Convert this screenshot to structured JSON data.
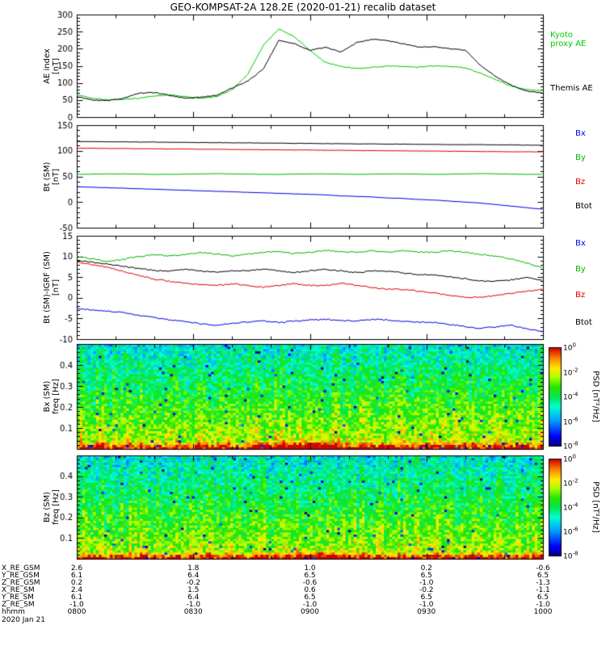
{
  "title": "GEO-KOMPSAT-2A 128.2E (2020-01-21) recalib dataset",
  "date_label": "2020 Jan 21",
  "colors": {
    "kyoto": "#00c800",
    "themis": "#000000",
    "bx": "#0000ee",
    "by": "#00b400",
    "bz": "#dd0000",
    "btot": "#000000"
  },
  "time_axis": {
    "xlim_minutes": [
      0,
      120
    ],
    "major_tick_minutes": [
      0,
      30,
      60,
      90,
      120
    ],
    "minor_step_minutes": 10,
    "major_tick_labels": [
      "0800",
      "0830",
      "0900",
      "0930",
      "1000"
    ]
  },
  "chart_data": [
    {
      "type": "line",
      "name": "ae-index",
      "ylabel_lines": [
        "AE index",
        "[nT]"
      ],
      "ylim": [
        0,
        300
      ],
      "yticks": [
        0,
        50,
        100,
        150,
        200,
        250,
        300
      ],
      "yminor": 10,
      "t_step_minutes": 4,
      "series": [
        {
          "name": "kyoto-proxy-ae",
          "legend_lines": [
            "Kyoto",
            "proxy AE"
          ],
          "color_key": "kyoto",
          "values": [
            65,
            55,
            50,
            52,
            55,
            62,
            65,
            60,
            55,
            60,
            80,
            125,
            210,
            258,
            235,
            195,
            160,
            148,
            142,
            145,
            150,
            148,
            146,
            150,
            148,
            144,
            128,
            108,
            90,
            80,
            78
          ]
        },
        {
          "name": "themis-ae",
          "legend_lines": [
            "Themis AE"
          ],
          "color_key": "themis",
          "values": [
            60,
            50,
            48,
            55,
            70,
            72,
            63,
            55,
            58,
            64,
            85,
            105,
            140,
            225,
            215,
            195,
            205,
            190,
            218,
            228,
            224,
            214,
            205,
            206,
            200,
            196,
            150,
            118,
            92,
            76,
            70
          ]
        }
      ]
    },
    {
      "type": "line",
      "name": "b-sm",
      "ylabel_lines": [
        "Bt (SM)",
        "[nT]"
      ],
      "ylim": [
        -50,
        150
      ],
      "yticks": [
        -50,
        0,
        50,
        100,
        150
      ],
      "yminor": 10,
      "t_step_minutes": 4,
      "series": [
        {
          "name": "bx",
          "legend_lines": [
            "Bx"
          ],
          "color_key": "bx",
          "values": [
            30,
            29,
            28,
            27,
            26,
            25,
            24,
            23,
            22,
            21,
            20,
            19,
            18,
            17,
            16,
            15,
            14,
            12,
            11,
            10,
            8,
            7,
            5,
            4,
            2,
            0,
            -2,
            -5,
            -8,
            -11,
            -14
          ]
        },
        {
          "name": "by",
          "legend_lines": [
            "By"
          ],
          "color_key": "by",
          "values": [
            54,
            54.5,
            55,
            55,
            54.5,
            54,
            54,
            54.5,
            55,
            55.5,
            55,
            54.5,
            54,
            54,
            54.5,
            55,
            55,
            54.5,
            54,
            54.5,
            55,
            55,
            54.5,
            54,
            54.5,
            55,
            55.5,
            55,
            54.5,
            54,
            54
          ]
        },
        {
          "name": "bz",
          "legend_lines": [
            "Bz"
          ],
          "color_key": "bz",
          "values": [
            105,
            105,
            104.5,
            104.5,
            104,
            104,
            103.5,
            103.5,
            103,
            103,
            102.5,
            102.5,
            102,
            102,
            101.5,
            101.5,
            101,
            101,
            100.5,
            100.5,
            100,
            100,
            99.5,
            99.5,
            99,
            99,
            98.5,
            98.5,
            98,
            98,
            98
          ]
        },
        {
          "name": "btot",
          "legend_lines": [
            "Btot"
          ],
          "color_key": "btot",
          "values": [
            118,
            118,
            117.5,
            117.5,
            117,
            117,
            116.5,
            116.5,
            116,
            116,
            115.5,
            115.5,
            115,
            115,
            114.5,
            114.5,
            114,
            114,
            113.5,
            113.5,
            113,
            113,
            112.5,
            112.5,
            112,
            112,
            112,
            111.5,
            111.5,
            111,
            111
          ]
        }
      ]
    },
    {
      "type": "line",
      "name": "b-minus-igrf",
      "ylabel_lines": [
        "Bt (SM)-IGRF (SM)",
        "[nT]"
      ],
      "ylim": [
        -10,
        15
      ],
      "yticks": [
        -10,
        -5,
        0,
        5,
        10,
        15
      ],
      "yminor": 1,
      "t_step_minutes": 4,
      "series": [
        {
          "name": "bx",
          "legend_lines": [
            "Bx"
          ],
          "color_key": "bx",
          "values": [
            -2.5,
            -3,
            -3.2,
            -3.6,
            -4.2,
            -4.8,
            -5.4,
            -5.8,
            -6.3,
            -6.6,
            -6.2,
            -5.8,
            -5.6,
            -6,
            -5.6,
            -5.4,
            -5.2,
            -5.5,
            -5.6,
            -5.2,
            -5.4,
            -5.6,
            -5.9,
            -6,
            -6.4,
            -7,
            -7.4,
            -7,
            -6.6,
            -7.6,
            -8.2
          ]
        },
        {
          "name": "by",
          "legend_lines": [
            "By"
          ],
          "color_key": "by",
          "values": [
            10,
            9.4,
            8.8,
            9.3,
            10,
            10.4,
            10.1,
            10.5,
            11,
            10.6,
            10.2,
            10.6,
            11,
            11.2,
            10.7,
            11,
            11.5,
            11.1,
            11,
            11.4,
            11,
            11.4,
            11.1,
            11,
            11.4,
            11,
            10.5,
            10,
            9.4,
            8.4,
            7.2
          ]
        },
        {
          "name": "bz",
          "legend_lines": [
            "Bz"
          ],
          "color_key": "bz",
          "values": [
            8.6,
            8,
            7.4,
            6.4,
            5.4,
            4.5,
            4,
            3.5,
            3.1,
            3,
            3.4,
            3,
            2.6,
            3,
            3.4,
            3,
            3,
            3.5,
            3,
            2.5,
            2.1,
            2,
            1.6,
            1.1,
            0.6,
            0.1,
            0.2,
            0.6,
            1.1,
            1.6,
            2.1
          ]
        },
        {
          "name": "btot",
          "legend_lines": [
            "Btot"
          ],
          "color_key": "btot",
          "values": [
            9,
            8.6,
            8.1,
            7.6,
            7.1,
            6.6,
            6.5,
            6.9,
            6.5,
            6.1,
            6.5,
            6.6,
            7,
            6.5,
            6.1,
            6.5,
            6.9,
            6.5,
            6.1,
            6.5,
            6.4,
            6,
            5.6,
            5.5,
            5.1,
            4.6,
            4.1,
            4,
            4.4,
            4.9,
            4.2
          ]
        }
      ]
    },
    {
      "type": "heatmap",
      "name": "bx-spectrogram",
      "ylabel_lines": [
        "Bx (SM)",
        "freq [Hz]"
      ],
      "ylim": [
        0,
        0.5
      ],
      "yticks": [
        0.1,
        0.2,
        0.3,
        0.4
      ],
      "yminor": 0.02,
      "colorbar": {
        "label": "PSD [nT²/Hz]",
        "tick_exponents": [
          0,
          -2,
          -4,
          -6,
          -8
        ],
        "log10_range": [
          -8,
          0
        ]
      },
      "synthesis": {
        "seed": 7,
        "nt": 170,
        "nf": 46,
        "base_bottom": -2.1,
        "base_top": -5.0,
        "noise": 1.1,
        "low_freq_boost": 2.3,
        "low_freq_frac": 0.07,
        "event_minute": 58,
        "event_boost": 1.3,
        "speck_prob": 0.015
      }
    },
    {
      "type": "heatmap",
      "name": "bz-spectrogram",
      "ylabel_lines": [
        "Bz (SM)",
        "freq [Hz]"
      ],
      "ylim": [
        0,
        0.5
      ],
      "yticks": [
        0.1,
        0.2,
        0.3,
        0.4
      ],
      "yminor": 0.02,
      "colorbar": {
        "label": "PSD [nT²/Hz]",
        "tick_exponents": [
          0,
          -2,
          -4,
          -6,
          -8
        ],
        "log10_range": [
          -8,
          0
        ]
      },
      "synthesis": {
        "seed": 13,
        "nt": 170,
        "nf": 46,
        "base_bottom": -2.2,
        "base_top": -5.0,
        "noise": 1.1,
        "low_freq_boost": 2.3,
        "low_freq_frac": 0.06,
        "event_minute": 62,
        "event_boost": 1.1,
        "speck_prob": 0.015
      }
    }
  ],
  "ephemeris": {
    "rows": [
      {
        "label": "X_RE_GSM",
        "values": [
          "2.6",
          "1.8",
          "1.0",
          "0.2",
          "-0.6"
        ]
      },
      {
        "label": "Y_RE_GSM",
        "values": [
          "6.1",
          "6.4",
          "6.5",
          "6.5",
          "6.5"
        ]
      },
      {
        "label": "Z_RE_GSM",
        "values": [
          "0.2",
          "-0.2",
          "-0.6",
          "-1.0",
          "-1.3"
        ]
      },
      {
        "label": "X_RE_SM",
        "values": [
          "2.4",
          "1.5",
          "0.6",
          "-0.2",
          "-1.1"
        ]
      },
      {
        "label": "Y_RE_SM",
        "values": [
          "6.1",
          "6.4",
          "6.5",
          "6.5",
          "6.5"
        ]
      },
      {
        "label": "Z_RE_SM",
        "values": [
          "-1.0",
          "-1.0",
          "-1.0",
          "-1.0",
          "-1.0"
        ]
      },
      {
        "label": "hhmm",
        "values": [
          "0800",
          "0830",
          "0900",
          "0930",
          "1000"
        ]
      }
    ]
  }
}
